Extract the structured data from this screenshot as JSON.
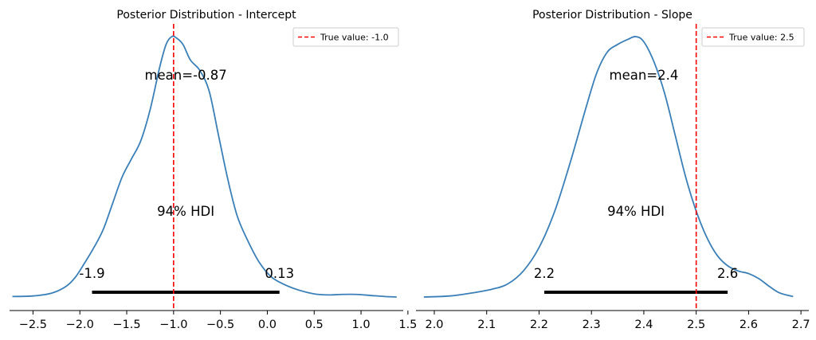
{
  "chart_data": [
    {
      "type": "line",
      "title": "Posterior Distribution - Intercept",
      "xlabel": "",
      "ylabel": "",
      "xlim": [
        -2.75,
        1.45
      ],
      "ylim": [
        0,
        1.0
      ],
      "x_ticks": [
        -2.5,
        -2.0,
        -1.5,
        -1.0,
        -0.5,
        0.0,
        0.5,
        1.0,
        1.5
      ],
      "x_tick_labels": [
        "−2.5",
        "−2.0",
        "−1.5",
        "−1.0",
        "−0.5",
        "0.0",
        "0.5",
        "1.0",
        "1.5"
      ],
      "grid": false,
      "legend_position": "upper right",
      "density": {
        "x": [
          -2.72,
          -2.5,
          -2.3,
          -2.15,
          -2.05,
          -1.95,
          -1.85,
          -1.75,
          -1.65,
          -1.55,
          -1.45,
          -1.35,
          -1.25,
          -1.15,
          -1.08,
          -1.02,
          -0.97,
          -0.9,
          -0.82,
          -0.72,
          -0.62,
          -0.52,
          -0.42,
          -0.32,
          -0.2,
          -0.08,
          0.05,
          0.2,
          0.35,
          0.5,
          0.65,
          0.8,
          0.95,
          1.1,
          1.25,
          1.38
        ],
        "y": [
          0.002,
          0.004,
          0.015,
          0.04,
          0.075,
          0.13,
          0.19,
          0.26,
          0.36,
          0.46,
          0.53,
          0.6,
          0.72,
          0.88,
          0.97,
          1.0,
          0.995,
          0.97,
          0.91,
          0.87,
          0.79,
          0.62,
          0.45,
          0.31,
          0.21,
          0.13,
          0.075,
          0.045,
          0.025,
          0.012,
          0.008,
          0.01,
          0.01,
          0.006,
          0.002,
          0.0
        ]
      },
      "true_value": -1.0,
      "legend_label": "True value: -1.0",
      "mean": -0.87,
      "mean_label": "mean=-0.87",
      "hdi": [
        -1.87,
        0.13
      ],
      "hdi_label": "94% HDI",
      "hdi_low_label": "-1.9",
      "hdi_high_label": "0.13",
      "colors": {
        "density": "#3a7fb8",
        "true_value": "#ff0000",
        "hdi": "#000000"
      }
    },
    {
      "type": "line",
      "title": "Posterior Distribution - Slope",
      "xlabel": "",
      "ylabel": "",
      "xlim": [
        1.965,
        2.715
      ],
      "ylim": [
        0,
        1.0
      ],
      "x_ticks": [
        2.0,
        2.1,
        2.2,
        2.3,
        2.4,
        2.5,
        2.6,
        2.7
      ],
      "x_tick_labels": [
        "2.0",
        "2.1",
        "2.2",
        "2.3",
        "2.4",
        "2.5",
        "2.6",
        "2.7"
      ],
      "grid": false,
      "legend_position": "upper right",
      "density": {
        "x": [
          1.98,
          2.03,
          2.07,
          2.11,
          2.14,
          2.17,
          2.2,
          2.23,
          2.26,
          2.29,
          2.31,
          2.33,
          2.35,
          2.37,
          2.385,
          2.4,
          2.42,
          2.44,
          2.46,
          2.48,
          2.5,
          2.52,
          2.54,
          2.56,
          2.58,
          2.6,
          2.62,
          2.64,
          2.66,
          2.685
        ],
        "y": [
          0.0,
          0.004,
          0.015,
          0.03,
          0.05,
          0.1,
          0.19,
          0.33,
          0.52,
          0.73,
          0.86,
          0.94,
          0.97,
          0.99,
          1.0,
          0.98,
          0.9,
          0.78,
          0.62,
          0.46,
          0.33,
          0.23,
          0.16,
          0.12,
          0.1,
          0.09,
          0.07,
          0.04,
          0.015,
          0.002
        ]
      },
      "true_value": 2.5,
      "legend_label": "True value: 2.5",
      "mean": 2.4,
      "mean_label": "mean=2.4",
      "hdi": [
        2.21,
        2.56
      ],
      "hdi_label": "94% HDI",
      "hdi_low_label": "2.2",
      "hdi_high_label": "2.6",
      "colors": {
        "density": "#3a7fb8",
        "true_value": "#ff0000",
        "hdi": "#000000"
      }
    }
  ]
}
